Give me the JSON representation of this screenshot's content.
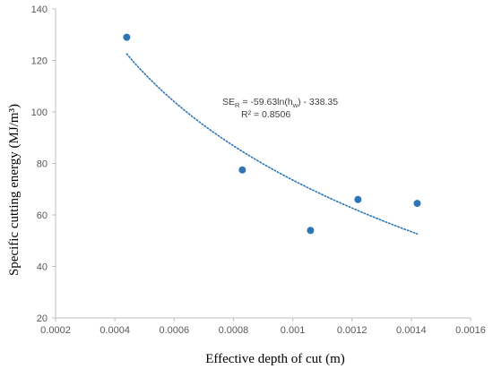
{
  "chart_data": {
    "type": "scatter",
    "title": "",
    "xlabel": "Effective depth of cut (m)",
    "ylabel": "Specific cutting energy (MJ/m³)",
    "xlim": [
      0.0002,
      0.0016
    ],
    "ylim": [
      20,
      140
    ],
    "xticks": [
      "0.0002",
      "0.0004",
      "0.0006",
      "0.0008",
      "0.001",
      "0.0012",
      "0.0014",
      "0.0016"
    ],
    "yticks": [
      "20",
      "40",
      "60",
      "80",
      "100",
      "120",
      "140"
    ],
    "grid": false,
    "legend": "none",
    "series": [
      {
        "x": [
          0.00044,
          0.00083,
          0.00106,
          0.00122,
          0.00142
        ],
        "y": [
          129,
          77.5,
          54,
          66,
          64.5
        ],
        "color": "#2e75b6"
      }
    ],
    "trendline": {
      "type": "logarithmic",
      "a": -59.63,
      "b": -338.35,
      "x_range": [
        0.00044,
        0.00142
      ],
      "color": "#2e75b6",
      "style": "dotted"
    },
    "annotations": {
      "equation_prefix": "SE",
      "equation_prefix_sub": "R",
      "equation_mid": " = -59.63ln(h",
      "equation_mid_sub": "w",
      "equation_suffix": ") - 338.35",
      "r_squared": "R² = 0.8506"
    }
  },
  "colors": {
    "marker": "#2e75b6",
    "axis": "#bfbfbf"
  }
}
